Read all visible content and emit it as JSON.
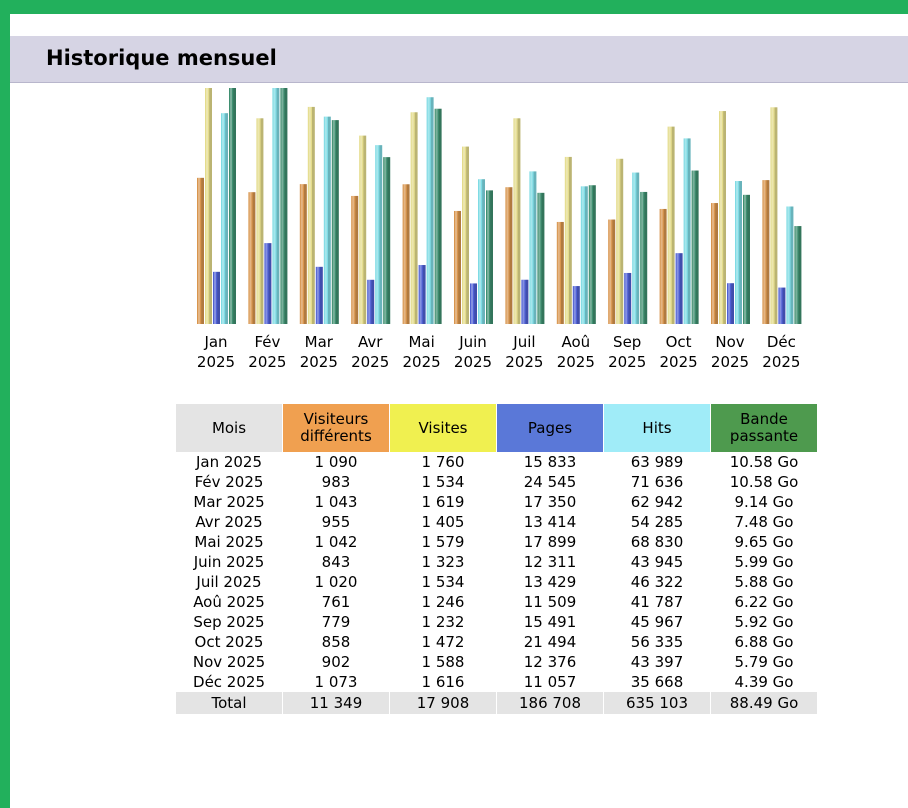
{
  "header": {
    "title": "Historique mensuel"
  },
  "chart_data": {
    "type": "bar",
    "categories": [
      {
        "month": "Jan",
        "year": "2025"
      },
      {
        "month": "Fév",
        "year": "2025"
      },
      {
        "month": "Mar",
        "year": "2025"
      },
      {
        "month": "Avr",
        "year": "2025"
      },
      {
        "month": "Mai",
        "year": "2025"
      },
      {
        "month": "Juin",
        "year": "2025"
      },
      {
        "month": "Juil",
        "year": "2025"
      },
      {
        "month": "Aoû",
        "year": "2025"
      },
      {
        "month": "Sep",
        "year": "2025"
      },
      {
        "month": "Oct",
        "year": "2025"
      },
      {
        "month": "Nov",
        "year": "2025"
      },
      {
        "month": "Déc",
        "year": "2025"
      }
    ],
    "series": [
      {
        "color": "#d8954e",
        "scale_group": "visits",
        "values": [
          1090,
          983,
          1043,
          955,
          1042,
          843,
          1020,
          761,
          779,
          858,
          902,
          1073
        ]
      },
      {
        "color": "#e4dc8c",
        "scale_group": "visits",
        "values": [
          1760,
          1534,
          1619,
          1405,
          1579,
          1323,
          1534,
          1246,
          1232,
          1472,
          1588,
          1616
        ]
      },
      {
        "color": "#4f60d4",
        "scale_group": "hits",
        "values": [
          15833,
          24545,
          17350,
          13414,
          17899,
          12311,
          13429,
          11509,
          15491,
          21494,
          12376,
          11057
        ]
      },
      {
        "color": "#7fdbe4",
        "scale_group": "hits",
        "values": [
          63989,
          71636,
          62942,
          54285,
          68830,
          43945,
          46322,
          41787,
          45967,
          56335,
          43397,
          35668
        ]
      },
      {
        "color": "#3f8f70",
        "scale_group": "bandwidth",
        "values": [
          10.58,
          10.58,
          9.14,
          7.48,
          9.65,
          5.99,
          5.88,
          6.22,
          5.92,
          6.88,
          5.79,
          4.39
        ]
      }
    ]
  },
  "table": {
    "headers": [
      "Mois",
      "Visiteurs différents",
      "Visites",
      "Pages",
      "Hits",
      "Bande passante"
    ],
    "header_colors": [
      "#e4e4e4",
      "#f0a050",
      "#f0f050",
      "#5a78d8",
      "#a0ecf8",
      "#4e9a4e"
    ],
    "rows": [
      [
        "Jan 2025",
        "1 090",
        "1 760",
        "15 833",
        "63 989",
        "10.58 Go"
      ],
      [
        "Fév 2025",
        "983",
        "1 534",
        "24 545",
        "71 636",
        "10.58 Go"
      ],
      [
        "Mar 2025",
        "1 043",
        "1 619",
        "17 350",
        "62 942",
        "9.14 Go"
      ],
      [
        "Avr 2025",
        "955",
        "1 405",
        "13 414",
        "54 285",
        "7.48 Go"
      ],
      [
        "Mai 2025",
        "1 042",
        "1 579",
        "17 899",
        "68 830",
        "9.65 Go"
      ],
      [
        "Juin 2025",
        "843",
        "1 323",
        "12 311",
        "43 945",
        "5.99 Go"
      ],
      [
        "Juil 2025",
        "1 020",
        "1 534",
        "13 429",
        "46 322",
        "5.88 Go"
      ],
      [
        "Aoû 2025",
        "761",
        "1 246",
        "11 509",
        "41 787",
        "6.22 Go"
      ],
      [
        "Sep 2025",
        "779",
        "1 232",
        "15 491",
        "45 967",
        "5.92 Go"
      ],
      [
        "Oct 2025",
        "858",
        "1 472",
        "21 494",
        "56 335",
        "6.88 Go"
      ],
      [
        "Nov 2025",
        "902",
        "1 588",
        "12 376",
        "43 397",
        "5.79 Go"
      ],
      [
        "Déc 2025",
        "1 073",
        "1 616",
        "11 057",
        "35 668",
        "4.39 Go"
      ]
    ],
    "total": [
      "Total",
      "11 349",
      "17 908",
      "186 708",
      "635 103",
      "88.49 Go"
    ]
  }
}
